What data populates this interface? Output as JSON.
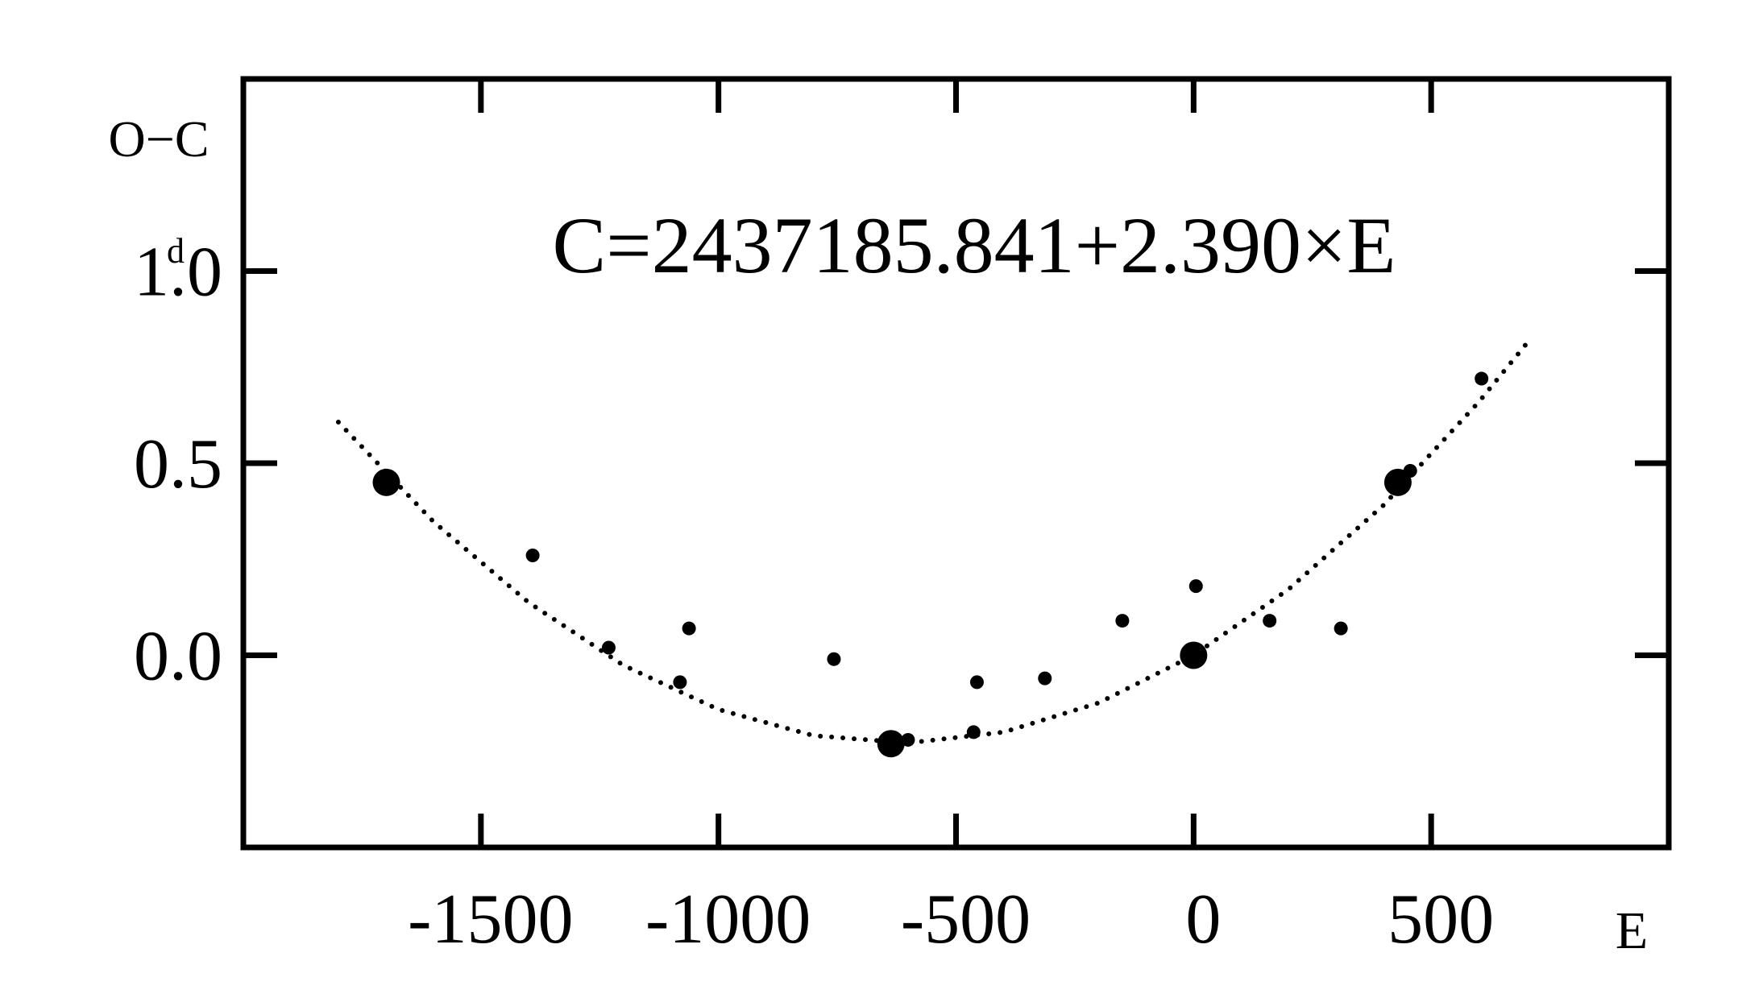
{
  "chart_data": {
    "type": "scatter",
    "annotation": "C=2437185.841+2.390×E",
    "y_label": "O−C",
    "y_unit": "d",
    "x_label": "E",
    "xlim": [
      -2000,
      1000
    ],
    "ylim": [
      -0.5,
      1.5
    ],
    "xticks": [
      -1500,
      -1000,
      -500,
      0,
      500
    ],
    "yticks": [
      {
        "value": 0,
        "label": "0.0"
      },
      0.5,
      {
        "value": 1,
        "label": "1.0"
      }
    ],
    "color": "#000000",
    "x": [
      -1699,
      -1694,
      -1391,
      -1231,
      -1081,
      -1062,
      -757,
      -637,
      -601,
      -463,
      -456,
      -313,
      -150,
      5,
      0,
      160,
      310,
      430,
      456,
      606
    ],
    "values": [
      0.45,
      0.44,
      0.26,
      0.02,
      -0.07,
      0.07,
      -0.01,
      -0.23,
      -0.22,
      -0.2,
      -0.07,
      -0.06,
      0.09,
      0.18,
      0.0,
      0.09,
      0.07,
      0.45,
      0.48,
      0.72
    ],
    "sizes": [
      2,
      1,
      1,
      1,
      1,
      1,
      1,
      2,
      1,
      1,
      1,
      1,
      1,
      1,
      2,
      1,
      1,
      2,
      1,
      1
    ],
    "fit": {
      "x": [
        -1800,
        -1600,
        -1400,
        -1200,
        -1000,
        -800,
        -600,
        -400,
        -200,
        0,
        200,
        400,
        600,
        700
      ],
      "values": [
        0.607,
        0.348,
        0.138,
        -0.026,
        -0.141,
        -0.209,
        -0.228,
        -0.2,
        -0.124,
        0,
        0.172,
        0.391,
        0.659,
        0.81
      ]
    }
  }
}
